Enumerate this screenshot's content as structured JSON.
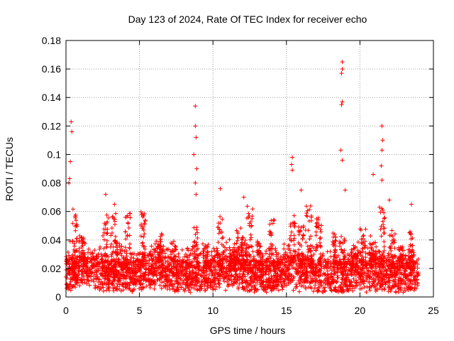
{
  "chart_data": {
    "type": "scatter",
    "title": "Day 123 of 2024, Rate Of TEC Index for receiver echo",
    "xlabel": "GPS time / hours",
    "ylabel": "ROTI / TECUs",
    "xlim": [
      0,
      25
    ],
    "ylim": [
      0,
      0.18
    ],
    "x_ticks": [
      0,
      5,
      10,
      15,
      20,
      25
    ],
    "x_tick_labels": [
      "0",
      "5",
      "10",
      "15",
      "20",
      "25"
    ],
    "y_ticks": [
      0,
      0.02,
      0.04,
      0.06,
      0.08,
      0.1,
      0.12,
      0.14,
      0.16,
      0.18
    ],
    "y_tick_labels": [
      "0",
      "0.02",
      "0.04",
      "0.06",
      "0.08",
      "0.1",
      "0.12",
      "0.14",
      "0.16",
      "0.18"
    ],
    "grid": true,
    "marker": "+",
    "marker_color": "#ff0000",
    "series": [
      {
        "name": "ROTI",
        "peaks": [
          {
            "x": 0.35,
            "y": 0.123
          },
          {
            "x": 0.4,
            "y": 0.116
          },
          {
            "x": 0.3,
            "y": 0.095
          },
          {
            "x": 0.25,
            "y": 0.083
          },
          {
            "x": 0.2,
            "y": 0.08
          },
          {
            "x": 2.7,
            "y": 0.072
          },
          {
            "x": 3.3,
            "y": 0.065
          },
          {
            "x": 8.8,
            "y": 0.134
          },
          {
            "x": 8.8,
            "y": 0.12
          },
          {
            "x": 8.85,
            "y": 0.112
          },
          {
            "x": 8.7,
            "y": 0.1
          },
          {
            "x": 8.9,
            "y": 0.09
          },
          {
            "x": 8.8,
            "y": 0.08
          },
          {
            "x": 8.85,
            "y": 0.072
          },
          {
            "x": 10.5,
            "y": 0.076
          },
          {
            "x": 12.1,
            "y": 0.07
          },
          {
            "x": 15.4,
            "y": 0.098
          },
          {
            "x": 15.35,
            "y": 0.093
          },
          {
            "x": 15.4,
            "y": 0.089
          },
          {
            "x": 16.0,
            "y": 0.075
          },
          {
            "x": 18.8,
            "y": 0.165
          },
          {
            "x": 18.8,
            "y": 0.16
          },
          {
            "x": 18.75,
            "y": 0.157
          },
          {
            "x": 18.8,
            "y": 0.137
          },
          {
            "x": 18.75,
            "y": 0.135
          },
          {
            "x": 18.7,
            "y": 0.103
          },
          {
            "x": 18.8,
            "y": 0.096
          },
          {
            "x": 19.0,
            "y": 0.075
          },
          {
            "x": 20.9,
            "y": 0.086
          },
          {
            "x": 21.5,
            "y": 0.12
          },
          {
            "x": 21.55,
            "y": 0.11
          },
          {
            "x": 21.5,
            "y": 0.103
          },
          {
            "x": 21.45,
            "y": 0.092
          },
          {
            "x": 21.5,
            "y": 0.082
          },
          {
            "x": 22.0,
            "y": 0.068
          },
          {
            "x": 23.5,
            "y": 0.065
          }
        ],
        "baseline_range": [
          0.003,
          0.03
        ],
        "x_range": [
          0,
          24
        ]
      }
    ]
  }
}
